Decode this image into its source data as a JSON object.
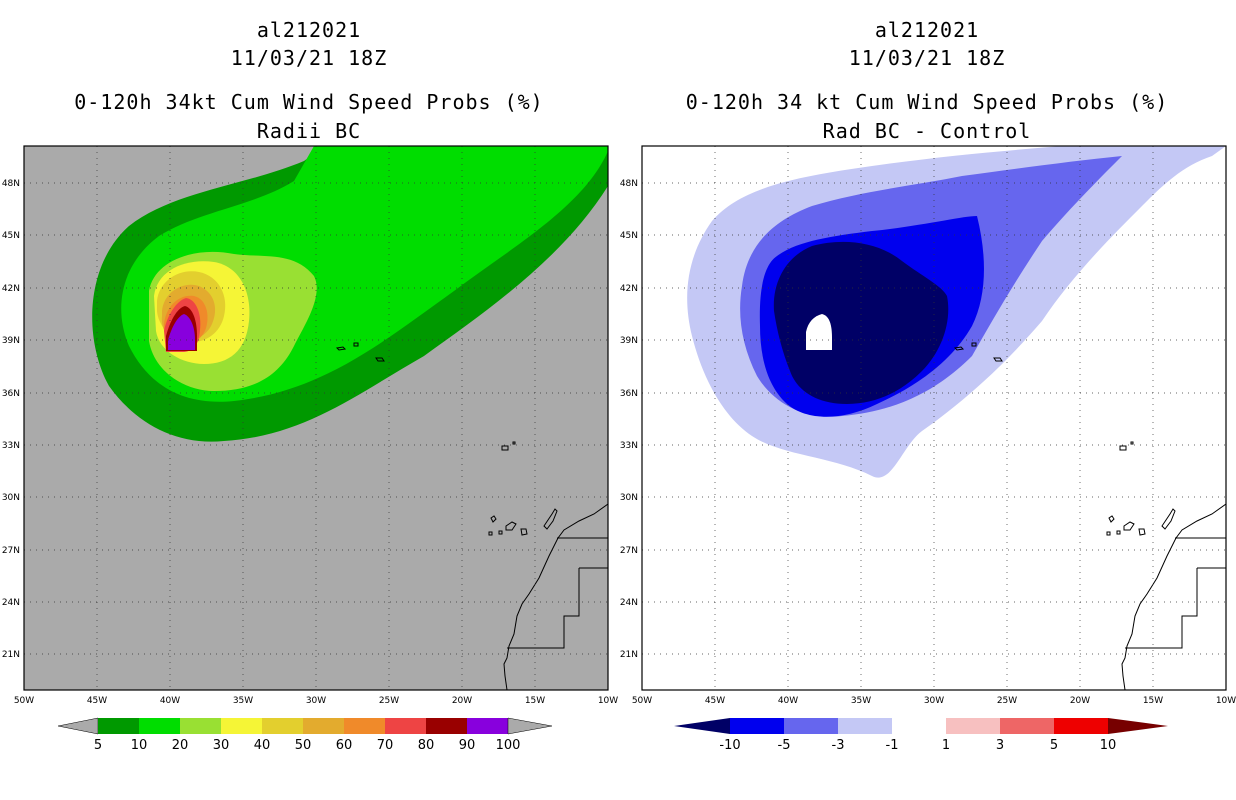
{
  "left_panel": {
    "storm_id": "al212021",
    "datetime": "11/03/21 18Z",
    "product": "0-120h 34kt Cum Wind Speed Probs (%)",
    "subtitle": "Radii BC",
    "colorbar": {
      "labels": [
        "5",
        "10",
        "20",
        "30",
        "40",
        "50",
        "60",
        "70",
        "80",
        "90",
        "100"
      ],
      "colors": [
        "#009900",
        "#00dd00",
        "#99e033",
        "#f5f536",
        "#e3cf2e",
        "#e3ab2e",
        "#f08a2a",
        "#ee4444",
        "#990000",
        "#8800dd"
      ],
      "end_color": "#aaaaaa"
    },
    "background_color": "#aaaaaa"
  },
  "right_panel": {
    "storm_id": "al212021",
    "datetime": "11/03/21 18Z",
    "product": "0-120h 34 kt Cum Wind Speed Probs (%)",
    "subtitle": "Rad BC - Control",
    "colorbar": {
      "labels": [
        "-10",
        "-5",
        "-3",
        "-1",
        "1",
        "3",
        "5",
        "10"
      ],
      "colors": [
        "#000066",
        "#0000ee",
        "#6666ee",
        "#c4c8f5",
        "#ffffff",
        "#f7c0c0",
        "#ee6666",
        "#ee0000",
        "#770000"
      ]
    }
  },
  "axes": {
    "lat_labels": [
      "48N",
      "45N",
      "42N",
      "39N",
      "36N",
      "33N",
      "30N",
      "27N",
      "24N",
      "21N"
    ],
    "lon_labels": [
      "50W",
      "45W",
      "40W",
      "35W",
      "30W",
      "25W",
      "20W",
      "15W",
      "10W"
    ]
  }
}
